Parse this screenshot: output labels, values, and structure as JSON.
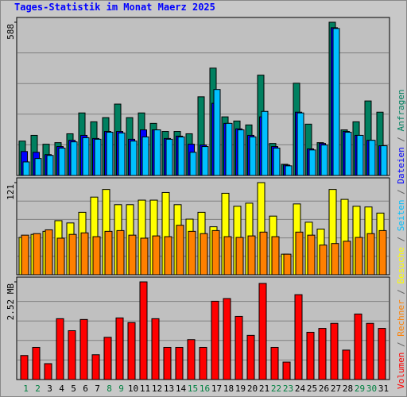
{
  "title": "Tages-Statistik im Monat Maerz 2025",
  "legend_separator": " / ",
  "chart_data": [
    {
      "type": "bar",
      "ylim": [
        0,
        588
      ],
      "yticks": [
        588
      ],
      "ygrid": [
        117.6,
        235.2,
        352.8,
        470.4
      ],
      "series": [
        {
          "name": "Anfragen",
          "color": "#008060",
          "values": [
            132,
            154,
            120,
            126,
            160,
            240,
            206,
            222,
            274,
            222,
            240,
            200,
            169,
            169,
            160,
            302,
            412,
            225,
            209,
            194,
            385,
            123,
            43,
            354,
            197,
            126,
            588,
            175,
            206,
            286,
            243
          ]
        },
        {
          "name": "Dateien",
          "color": "#0000ff",
          "values": [
            92,
            89,
            80,
            111,
            135,
            154,
            142,
            169,
            169,
            139,
            175,
            175,
            142,
            151,
            120,
            117,
            277,
            200,
            179,
            154,
            225,
            111,
            40,
            243,
            102,
            123,
            567,
            169,
            154,
            135,
            114
          ]
        },
        {
          "name": "Seiten",
          "color": "#00c0ff",
          "values": [
            52,
            65,
            77,
            105,
            129,
            145,
            139,
            166,
            163,
            132,
            148,
            175,
            139,
            148,
            89,
            111,
            330,
            200,
            175,
            148,
            246,
            105,
            37,
            240,
            98,
            117,
            564,
            166,
            154,
            135,
            114
          ]
        }
      ]
    },
    {
      "type": "bar",
      "ylim": [
        0,
        121
      ],
      "yticks": [
        121
      ],
      "ygrid": [
        24.2,
        48.4,
        72.6,
        96.8
      ],
      "series": [
        {
          "name": "Besuche",
          "color": "#ffff00",
          "values": [
            49,
            53,
            57,
            71,
            68,
            82,
            102,
            112,
            92,
            92,
            98,
            98,
            108,
            92,
            73,
            82,
            63,
            107,
            90,
            94,
            121,
            77,
            27,
            93,
            69,
            60,
            112,
            99,
            90,
            89,
            81
          ]
        },
        {
          "name": "Rechner",
          "color": "#ff8000",
          "values": [
            52,
            54,
            59,
            48,
            53,
            55,
            50,
            57,
            58,
            52,
            48,
            51,
            50,
            65,
            57,
            54,
            58,
            50,
            49,
            51,
            56,
            50,
            27,
            56,
            52,
            39,
            41,
            44,
            49,
            54,
            58
          ]
        }
      ]
    },
    {
      "type": "bar",
      "ylim": [
        0,
        2.52
      ],
      "yticks": [
        {
          "value": 2.52,
          "label": "2.52 MB"
        }
      ],
      "ygrid": [
        0.504,
        1.008,
        1.512,
        2.016
      ],
      "categories": [
        "1",
        "2",
        "3",
        "4",
        "5",
        "6",
        "7",
        "8",
        "9",
        "10",
        "11",
        "12",
        "13",
        "14",
        "15",
        "16",
        "17",
        "18",
        "19",
        "20",
        "21",
        "22",
        "23",
        "24",
        "25",
        "26",
        "27",
        "28",
        "29",
        "30",
        "31"
      ],
      "category_colors": [
        "#008040",
        "#008040",
        "#000000",
        "#000000",
        "#000000",
        "#000000",
        "#000000",
        "#008040",
        "#008040",
        "#000000",
        "#000000",
        "#000000",
        "#000000",
        "#000000",
        "#008040",
        "#008040",
        "#000000",
        "#000000",
        "#000000",
        "#000000",
        "#000000",
        "#008040",
        "#008040",
        "#000000",
        "#000000",
        "#000000",
        "#000000",
        "#000000",
        "#008040",
        "#008040",
        "#000000"
      ],
      "series": [
        {
          "name": "Volumen",
          "color": "#ff0000",
          "values": [
            0.62,
            0.83,
            0.41,
            1.57,
            1.26,
            1.55,
            0.64,
            1.09,
            1.59,
            1.47,
            2.52,
            1.57,
            0.83,
            0.83,
            1.03,
            0.83,
            2.02,
            2.09,
            1.63,
            1.14,
            2.48,
            0.83,
            0.45,
            2.19,
            1.22,
            1.32,
            1.45,
            0.76,
            1.69,
            1.45,
            1.32
          ]
        }
      ]
    }
  ]
}
